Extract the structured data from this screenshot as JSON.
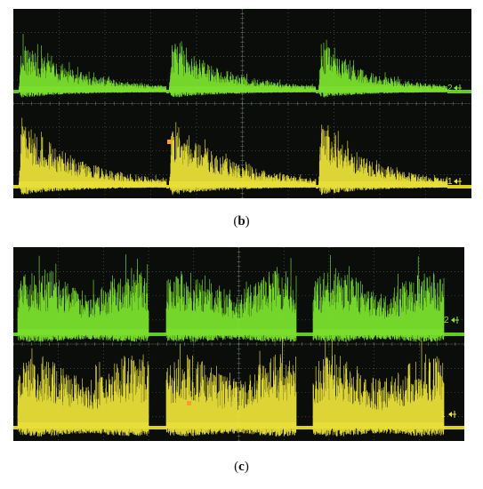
{
  "panels": [
    {
      "id": "b",
      "caption_open": "(",
      "caption_letter": "b",
      "caption_close": ")",
      "channels": [
        {
          "label": "2",
          "color": "#7ee62e",
          "baseline": "#66d820",
          "envelope": "decay"
        },
        {
          "label": "1",
          "color": "#f0e63a",
          "baseline": "#e8de20",
          "envelope": "decay"
        }
      ],
      "burst_count": 3
    },
    {
      "id": "c",
      "caption_open": "(",
      "caption_letter": "c",
      "caption_close": ")",
      "channels": [
        {
          "label": "2",
          "color": "#7ee62e",
          "baseline": "#66d820",
          "envelope": "flat"
        },
        {
          "label": "1",
          "color": "#f0e63a",
          "baseline": "#e8de20",
          "envelope": "flat"
        }
      ],
      "burst_count": 3
    }
  ],
  "colors": {
    "screen": "#0a0d0a",
    "grid": "#6e7a6e",
    "trigger_marker": "#ff9a2e"
  }
}
